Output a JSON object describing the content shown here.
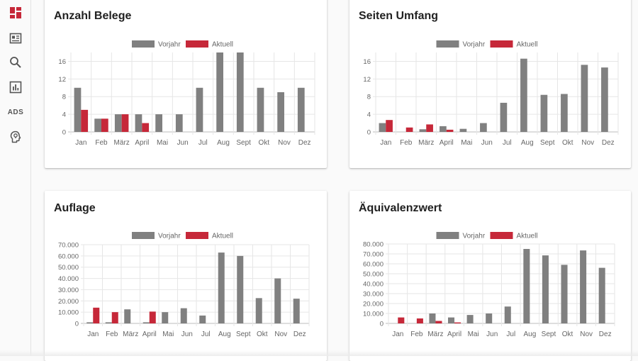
{
  "nav": {
    "items": [
      {
        "name": "dashboard-icon",
        "label": ""
      },
      {
        "name": "document-list-icon",
        "label": ""
      },
      {
        "name": "search-icon",
        "label": ""
      },
      {
        "name": "bar-chart-icon",
        "label": ""
      },
      {
        "name": "ads-icon",
        "label": "ADS"
      },
      {
        "name": "head-lightbulb-icon",
        "label": ""
      }
    ],
    "active_color": "#c62839"
  },
  "legend": {
    "previous": "Vorjahr",
    "current": "Aktuell"
  },
  "colors": {
    "previous": "#808080",
    "current": "#c62839",
    "grid": "#e6e6e6",
    "axis_text": "#666666"
  },
  "chart_data": [
    {
      "type": "bar",
      "title": "Anzahl Belege",
      "categories": [
        "Jan",
        "Feb",
        "März",
        "April",
        "Mai",
        "Jun",
        "Jul",
        "Aug",
        "Sept",
        "Okt",
        "Nov",
        "Dez"
      ],
      "series": [
        {
          "name": "Vorjahr",
          "values": [
            10,
            3,
            4,
            4,
            4,
            4,
            10,
            18,
            18,
            10,
            9,
            10
          ]
        },
        {
          "name": "Aktuell",
          "values": [
            5,
            3,
            4,
            2,
            0,
            0,
            0,
            0,
            0,
            0,
            0,
            0
          ]
        }
      ],
      "ylim": [
        0,
        18
      ],
      "yticks": [
        0,
        4,
        8,
        12,
        16
      ],
      "ytick_labels": [
        "0",
        "4",
        "8",
        "12",
        "16"
      ],
      "legend_position": "top"
    },
    {
      "type": "bar",
      "title": "Seiten Umfang",
      "categories": [
        "Jan",
        "Feb",
        "März",
        "April",
        "Mai",
        "Jun",
        "Jul",
        "Aug",
        "Sept",
        "Okt",
        "Nov",
        "Dez"
      ],
      "series": [
        {
          "name": "Vorjahr",
          "values": [
            2,
            0,
            0.6,
            1.3,
            0.7,
            2,
            6.6,
            16.6,
            8.4,
            8.6,
            15.2,
            14.6
          ]
        },
        {
          "name": "Aktuell",
          "values": [
            2.7,
            1,
            1.7,
            0.5,
            0,
            0,
            0,
            0,
            0,
            0,
            0,
            0
          ]
        }
      ],
      "ylim": [
        0,
        18
      ],
      "yticks": [
        0,
        4,
        8,
        12,
        16
      ],
      "ytick_labels": [
        "0",
        "4",
        "8",
        "12",
        "16"
      ],
      "legend_position": "top"
    },
    {
      "type": "bar",
      "title": "Auflage",
      "categories": [
        "Jan",
        "Feb",
        "März",
        "April",
        "Mai",
        "Jun",
        "Jul",
        "Aug",
        "Sept",
        "Okt",
        "Nov",
        "Dez"
      ],
      "series": [
        {
          "name": "Vorjahr",
          "values": [
            1000,
            1000,
            12500,
            1000,
            10000,
            13500,
            7000,
            63000,
            60000,
            22500,
            40000,
            22000
          ]
        },
        {
          "name": "Aktuell",
          "values": [
            14000,
            10000,
            0,
            10500,
            0,
            0,
            0,
            0,
            0,
            0,
            0,
            0
          ]
        }
      ],
      "ylim": [
        0,
        70000
      ],
      "yticks": [
        0,
        10000,
        20000,
        30000,
        40000,
        50000,
        60000,
        70000
      ],
      "ytick_labels": [
        "0",
        "10.000",
        "20.000",
        "30.000",
        "40.000",
        "50.000",
        "60.000",
        "70.000"
      ],
      "legend_position": "top"
    },
    {
      "type": "bar",
      "title": "Äquivalenzwert",
      "categories": [
        "Jan",
        "Feb",
        "März",
        "April",
        "Mai",
        "Jun",
        "Jul",
        "Aug",
        "Sept",
        "Okt",
        "Nov",
        "Dez"
      ],
      "series": [
        {
          "name": "Vorjahr",
          "values": [
            0,
            0,
            10000,
            6000,
            8500,
            10000,
            17000,
            75000,
            68500,
            59000,
            73500,
            56000
          ]
        },
        {
          "name": "Aktuell",
          "values": [
            6000,
            5000,
            2500,
            1000,
            0,
            0,
            0,
            0,
            0,
            0,
            0,
            0
          ]
        }
      ],
      "ylim": [
        0,
        80000
      ],
      "yticks": [
        0,
        10000,
        20000,
        30000,
        40000,
        50000,
        60000,
        70000,
        80000
      ],
      "ytick_labels": [
        "0",
        "10.000",
        "20.000",
        "30.000",
        "40.000",
        "50.000",
        "60.000",
        "70.000",
        "80.000"
      ],
      "legend_position": "top"
    }
  ]
}
